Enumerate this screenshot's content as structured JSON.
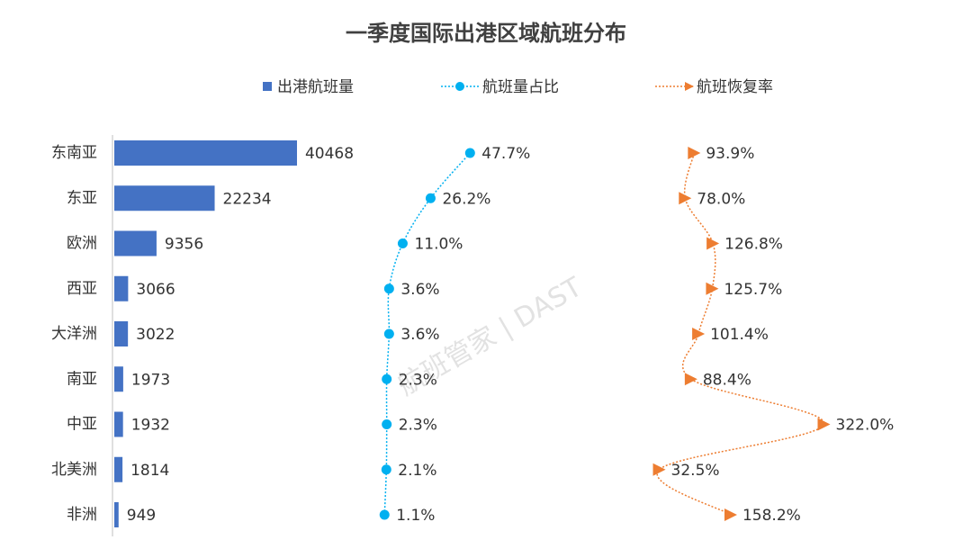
{
  "chart_data": {
    "type": "bar",
    "orientation": "horizontal",
    "title": "一季度国际出港区域航班分布",
    "watermark": "航班管家 | DAST",
    "categories": [
      "东南亚",
      "东亚",
      "欧洲",
      "西亚",
      "大洋洲",
      "南亚",
      "中亚",
      "北美洲",
      "非洲"
    ],
    "series": [
      {
        "name": "出港航班量",
        "type": "bar",
        "color": "#4472c4",
        "values": [
          40468,
          22234,
          9356,
          3066,
          3022,
          1973,
          1932,
          1814,
          949
        ]
      },
      {
        "name": "航班量占比",
        "type": "line",
        "marker": "circle",
        "color": "#00b0f0",
        "values": [
          47.7,
          26.2,
          11.0,
          3.6,
          3.6,
          2.3,
          2.3,
          2.1,
          1.1
        ],
        "value_labels": [
          "47.7%",
          "26.2%",
          "11.0%",
          "3.6%",
          "3.6%",
          "2.3%",
          "2.3%",
          "2.1%",
          "1.1%"
        ]
      },
      {
        "name": "航班恢复率",
        "type": "line",
        "marker": "triangle",
        "color": "#ed7d31",
        "values": [
          93.9,
          78.0,
          126.8,
          125.7,
          101.4,
          88.4,
          322.0,
          32.5,
          158.2
        ],
        "value_labels": [
          "93.9%",
          "78.0%",
          "126.8%",
          "125.7%",
          "101.4%",
          "88.4%",
          "322.0%",
          "32.5%",
          "158.2%"
        ]
      }
    ]
  }
}
